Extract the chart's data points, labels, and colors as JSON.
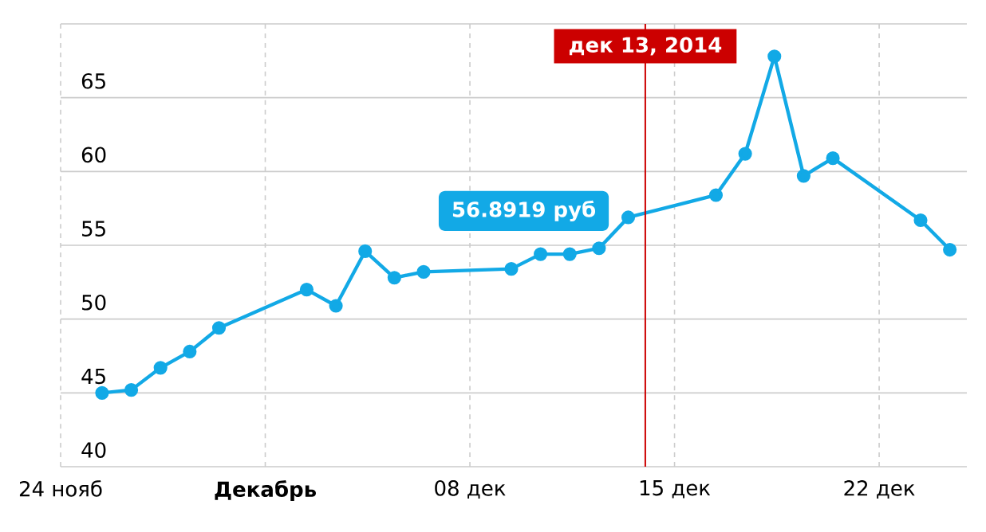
{
  "chart_data": {
    "type": "line",
    "x": [
      "2014-11-25T10:00",
      "2014-11-26T10:00",
      "2014-11-27T10:00",
      "2014-11-28T10:00",
      "2014-11-29T10:00",
      "2014-12-02T10:00",
      "2014-12-03T10:00",
      "2014-12-04T10:00",
      "2014-12-05T10:00",
      "2014-12-06T10:00",
      "2014-12-09T10:00",
      "2014-12-10T10:00",
      "2014-12-11T10:00",
      "2014-12-12T10:00",
      "2014-12-13T10:00",
      "2014-12-16T10:00",
      "2014-12-17T10:00",
      "2014-12-18T10:00",
      "2014-12-19T10:00",
      "2014-12-20T10:00",
      "2014-12-23T10:00",
      "2014-12-24T10:00"
    ],
    "series": [
      {
        "color": "#12a9e6",
        "values": [
          45.0,
          45.2,
          46.7,
          47.8,
          49.4,
          52.0,
          50.9,
          54.6,
          52.8,
          53.2,
          53.4,
          54.4,
          54.4,
          54.8,
          56.8919,
          58.4,
          61.2,
          67.8,
          59.7,
          60.9,
          56.7,
          54.7
        ]
      }
    ],
    "xlim": [
      "2014-11-24T00:00",
      "2014-12-25T00:00"
    ],
    "xticks": [
      {
        "value": "2014-11-24",
        "label": "24 нояб"
      },
      {
        "value": "2014-12-01",
        "label": "**Декабрь**"
      },
      {
        "value": "2014-12-08",
        "label": "08 дек"
      },
      {
        "value": "2014-12-15",
        "label": "15 дек"
      },
      {
        "value": "2014-12-22",
        "label": "22 дек"
      }
    ],
    "ylim": [
      40,
      70
    ],
    "yticks": [
      40,
      45,
      50,
      55,
      60,
      65,
      {
        "value": 70,
        "label": null
      }
    ],
    "grid": true,
    "marker": "circle",
    "line_style": "solid",
    "ref_lines": [
      {
        "axis": "x",
        "value": "2014-12-14T00:00",
        "label": "дек 13, 2014",
        "color": "#cc0000"
      }
    ],
    "annotations": [
      {
        "text": "56.8919 руб",
        "x": "2014-12-13T10:00",
        "y": 56.8919
      }
    ]
  }
}
